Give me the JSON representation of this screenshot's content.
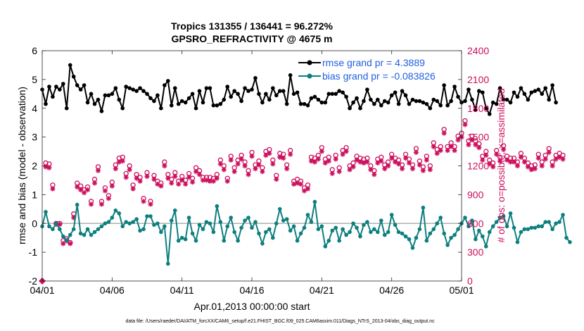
{
  "chart_data": {
    "type": "line",
    "title": "Tropics 131355 / 136441 = 96.272%",
    "subtitle": "GPSRO_REFRACTIVITY @ 4675 m",
    "xlabel": "Apr.01,2013 00:00:00 start",
    "ylabel": "rmse and bias (model - observation)",
    "ylabel_right": "# of obs: o=possible; ×=assimilated",
    "footnote": "data file: /Users/raeder/DAI/ATM_forcXX/CAM6_setup/f.e21.FHIST_BGC.f09_025.CAM6assim.011/Diags_NTrS_2013-04/obs_diag_output.nc",
    "xlim": [
      0,
      30
    ],
    "ylim": [
      -2,
      6
    ],
    "ylim_right": [
      0,
      2400
    ],
    "x_ticks": [
      0,
      5,
      10,
      15,
      20,
      25,
      30
    ],
    "x_tick_labels": [
      "04/01",
      "04/06",
      "04/11",
      "04/16",
      "04/21",
      "04/26",
      "05/01"
    ],
    "y_ticks": [
      -2,
      -1,
      0,
      1,
      2,
      3,
      4,
      5,
      6
    ],
    "y_tick_labels": [
      "-2",
      "-1",
      "0",
      "1",
      "2",
      "3",
      "4",
      "5",
      "6"
    ],
    "y_ticks_right": [
      0,
      300,
      600,
      900,
      1200,
      1500,
      1800,
      2100,
      2400
    ],
    "y_tick_labels_right": [
      "0",
      "300",
      "600",
      "900",
      "1200",
      "1500",
      "1800",
      "2100",
      "2400"
    ],
    "zero_line": 0,
    "legend": {
      "position": "top-right",
      "entries": [
        "rmse grand pr = 4.3889",
        "bias grand pr = -0.083826"
      ]
    },
    "colors": {
      "rmse": "#000000",
      "bias": "#0e7f7f",
      "obs": "#cc0e5c",
      "legend_text": "#1f5fe0",
      "zero_line": "#b0b0b0"
    },
    "x_step": 0.25,
    "series": [
      {
        "name": "rmse grand pr = 4.3889",
        "axis": "left",
        "values": [
          4.65,
          4.15,
          4.75,
          4.4,
          4.75,
          4.65,
          4.85,
          4.0,
          5.5,
          5.1,
          4.8,
          4.65,
          4.8,
          4.2,
          4.5,
          4.15,
          4.3,
          3.9,
          4.45,
          4.45,
          4.5,
          4.7,
          4.3,
          4.0,
          4.75,
          4.7,
          4.65,
          4.6,
          4.7,
          4.6,
          4.5,
          4.35,
          4.25,
          4.45,
          4.0,
          4.8,
          4.95,
          4.1,
          4.7,
          4.15,
          4.25,
          4.2,
          4.35,
          4.5,
          4.0,
          4.6,
          4.2,
          4.7,
          4.7,
          4.1,
          4.1,
          4.15,
          4.3,
          4.75,
          4.4,
          4.6,
          4.5,
          4.25,
          4.7,
          4.6,
          4.65,
          5.05,
          4.5,
          4.2,
          4.5,
          4.3,
          4.7,
          4.45,
          4.6,
          4.6,
          4.15,
          5.15,
          4.5,
          4.55,
          4.15,
          4.15,
          4.1,
          4.35,
          4.4,
          4.3,
          4.2,
          4.2,
          4.5,
          4.5,
          4.5,
          4.6,
          4.55,
          4.4,
          4.0,
          4.2,
          4.35,
          4.0,
          4.25,
          4.65,
          4.3,
          4.15,
          4.3,
          4.1,
          4.25,
          4.2,
          4.45,
          4.55,
          4.15,
          4.6,
          4.45,
          4.15,
          4.3,
          4.25,
          4.25,
          4.2,
          4.15,
          4.0,
          4.3,
          4.25,
          4.1,
          4.8,
          4.1,
          4.25,
          4.75,
          4.4,
          4.2,
          4.25,
          4.65,
          4.3,
          3.95,
          4.6,
          4.55,
          4.0,
          3.8,
          4.2,
          4.15,
          4.7,
          4.3,
          4.3,
          4.2,
          4.55,
          4.4,
          4.7,
          4.5,
          4.3,
          4.55,
          4.6,
          4.65,
          4.5,
          4.7,
          4.3,
          4.8,
          4.2
        ]
      },
      {
        "name": "bias grand pr = -0.083826",
        "axis": "left",
        "values": [
          -0.1,
          0.4,
          -0.1,
          -0.2,
          0.0,
          -0.2,
          -0.45,
          -0.6,
          -0.4,
          -0.2,
          0.65,
          -0.35,
          -0.4,
          -0.2,
          -0.4,
          -0.3,
          -0.2,
          -0.1,
          0.0,
          0.05,
          0.2,
          0.45,
          0.35,
          -0.1,
          0.05,
          0.0,
          0.05,
          0.15,
          -0.25,
          -0.2,
          0.25,
          0.25,
          -0.05,
          0.0,
          -0.3,
          -0.1,
          -1.4,
          0.1,
          0.45,
          -0.6,
          -0.5,
          -0.55,
          0.2,
          -0.35,
          -0.6,
          -0.05,
          -0.2,
          0.05,
          0.0,
          -0.3,
          0.6,
          0.05,
          -0.6,
          -0.1,
          0.2,
          -0.3,
          -0.6,
          -0.15,
          0.1,
          0.2,
          -0.15,
          0.05,
          -0.35,
          -0.7,
          -0.3,
          -0.2,
          -0.5,
          0.0,
          0.5,
          0.1,
          0.15,
          -0.25,
          -0.1,
          -0.6,
          -0.35,
          -0.15,
          0.3,
          0.05,
          0.75,
          -0.2,
          -0.1,
          -0.8,
          -0.6,
          -0.25,
          -0.15,
          -0.6,
          -0.2,
          -0.4,
          -0.3,
          0.0,
          -0.15,
          -0.45,
          -0.05,
          0.05,
          -0.3,
          -0.2,
          -0.3,
          0.1,
          -0.4,
          -0.3,
          0.3,
          -0.05,
          -0.3,
          -0.35,
          -0.45,
          -0.55,
          -0.85,
          -0.5,
          -0.2,
          0.55,
          -0.6,
          -0.35,
          -0.2,
          0.0,
          0.2,
          -0.35,
          -0.75,
          -0.5,
          -0.4,
          -0.2,
          0.0,
          0.2,
          -0.1,
          0.1,
          -0.55,
          -0.25,
          -0.45,
          -0.8,
          -0.3,
          -0.1,
          0.05,
          0.2,
          0.25,
          -0.1,
          0.35,
          -0.15,
          -0.65,
          -0.3,
          -0.2,
          -0.2,
          -0.15,
          -0.15,
          -0.1,
          -0.1,
          0.05,
          0.05,
          -0.2,
          0.0,
          0.05,
          0.3,
          -0.5,
          -0.65
        ]
      },
      {
        "name": "obs possible",
        "axis": "right",
        "marker": "circle",
        "values": [
          0,
          1230,
          1220,
          1000,
          600,
          600,
          420,
          440,
          400,
          700,
          1020,
          990,
          950,
          980,
          830,
          1060,
          1190,
          830,
          970,
          890,
          1030,
          1210,
          1280,
          1290,
          1120,
          1200,
          1000,
          1110,
          1080,
          860,
          1130,
          830,
          1100,
          1040,
          1020,
          1240,
          1110,
          1060,
          1130,
          1040,
          1090,
          1050,
          1120,
          1070,
          1180,
          1150,
          1080,
          1080,
          1080,
          1070,
          1110,
          1260,
          1200,
          1070,
          1300,
          1180,
          1260,
          1310,
          1240,
          1150,
          1340,
          1210,
          1250,
          1180,
          1350,
          1370,
          1260,
          1100,
          1330,
          1320,
          1210,
          1360,
          1040,
          1060,
          1040,
          970,
          1000,
          1290,
          1280,
          1310,
          1390,
          1270,
          1290,
          1160,
          1310,
          1180,
          1360,
          1390,
          1200,
          1230,
          1300,
          1280,
          1270,
          1280,
          1200,
          1150,
          1270,
          1290,
          1210,
          1240,
          1320,
          1280,
          1260,
          1210,
          1320,
          1270,
          1210,
          1380,
          1250,
          1190,
          1300,
          1200,
          1440,
          1370,
          1400,
          1580,
          1400,
          1440,
          1400,
          1510,
          1540,
          1670,
          1460,
          1510,
          1460,
          1430,
          1300,
          1350,
          1260,
          1230,
          1360,
          1290,
          1410,
          1300,
          1280,
          1280,
          1240,
          1330,
          1280,
          1230,
          1200,
          1210,
          1320,
          1240,
          1310,
          1380,
          1240,
          1310,
          1330,
          1310
        ]
      },
      {
        "name": "obs assimilated",
        "axis": "right",
        "marker": "asterisk",
        "values": [
          0,
          1190,
          1180,
          960,
          590,
          590,
          390,
          420,
          390,
          660,
          980,
          950,
          920,
          950,
          800,
          1020,
          1150,
          800,
          940,
          860,
          990,
          1170,
          1240,
          1250,
          1080,
          1160,
          960,
          1070,
          1040,
          830,
          1090,
          800,
          1060,
          1010,
          990,
          1200,
          1070,
          1020,
          1090,
          1010,
          1050,
          1010,
          1080,
          1030,
          1140,
          1110,
          1050,
          1050,
          1040,
          1040,
          1070,
          1220,
          1160,
          1040,
          1260,
          1140,
          1220,
          1270,
          1200,
          1110,
          1300,
          1170,
          1210,
          1140,
          1310,
          1330,
          1220,
          1060,
          1290,
          1280,
          1170,
          1320,
          1010,
          1020,
          1010,
          940,
          960,
          1250,
          1240,
          1270,
          1350,
          1230,
          1250,
          1120,
          1270,
          1140,
          1320,
          1350,
          1160,
          1190,
          1260,
          1240,
          1230,
          1240,
          1160,
          1110,
          1230,
          1250,
          1170,
          1200,
          1280,
          1240,
          1220,
          1170,
          1280,
          1230,
          1170,
          1340,
          1210,
          1150,
          1260,
          1160,
          1400,
          1330,
          1360,
          1540,
          1360,
          1400,
          1360,
          1470,
          1500,
          1630,
          1420,
          1470,
          1420,
          1390,
          1260,
          1310,
          1220,
          1190,
          1320,
          1250,
          1370,
          1260,
          1240,
          1240,
          1200,
          1290,
          1240,
          1190,
          1160,
          1170,
          1280,
          1200,
          1270,
          1340,
          1200,
          1270,
          1290,
          1270
        ]
      }
    ]
  }
}
